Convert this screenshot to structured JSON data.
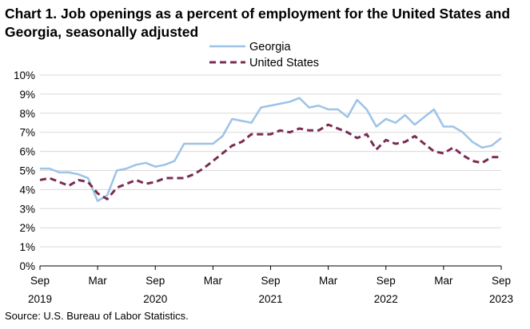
{
  "title": "Chart 1. Job openings as a percent of employment for the United States and Georgia, seasonally adjusted",
  "source": "Source: U.S. Bureau of Labor Statistics.",
  "chart_data": {
    "type": "line",
    "title": "Chart 1. Job openings as a percent of employment for the United States and Georgia, seasonally adjusted",
    "x_start": "Sep 2019",
    "x_end": "Sep 2023",
    "frequency": "monthly",
    "x_ticks": [
      {
        "month": "Sep",
        "year": "2019"
      },
      {
        "month": "Mar",
        "year": ""
      },
      {
        "month": "Sep",
        "year": "2020"
      },
      {
        "month": "Mar",
        "year": ""
      },
      {
        "month": "Sep",
        "year": "2021"
      },
      {
        "month": "Mar",
        "year": ""
      },
      {
        "month": "Sep",
        "year": "2022"
      },
      {
        "month": "Mar",
        "year": ""
      },
      {
        "month": "Sep",
        "year": "2023"
      }
    ],
    "y_ticks": [
      "0%",
      "1%",
      "2%",
      "3%",
      "4%",
      "5%",
      "6%",
      "7%",
      "8%",
      "9%",
      "10%"
    ],
    "ylim": [
      0,
      10
    ],
    "grid": "horizontal",
    "legend": "top-center",
    "series": [
      {
        "name": "Georgia",
        "color": "#9dc3e6",
        "style": "solid",
        "values": [
          5.1,
          5.1,
          4.9,
          4.9,
          4.8,
          4.6,
          3.4,
          3.7,
          5.0,
          5.1,
          5.3,
          5.4,
          5.2,
          5.3,
          5.5,
          6.4,
          6.4,
          6.4,
          6.4,
          6.8,
          7.7,
          7.6,
          7.5,
          8.3,
          8.4,
          8.5,
          8.6,
          8.8,
          8.3,
          8.4,
          8.2,
          8.2,
          7.8,
          8.7,
          8.2,
          7.3,
          7.7,
          7.5,
          7.9,
          7.4,
          7.8,
          8.2,
          7.3,
          7.3,
          7.0,
          6.5,
          6.2,
          6.3,
          6.7
        ]
      },
      {
        "name": "United States",
        "color": "#7b2c52",
        "style": "dashed",
        "values": [
          4.5,
          4.6,
          4.4,
          4.2,
          4.5,
          4.4,
          3.8,
          3.5,
          4.1,
          4.3,
          4.5,
          4.3,
          4.4,
          4.6,
          4.6,
          4.6,
          4.8,
          5.1,
          5.5,
          5.9,
          6.3,
          6.5,
          6.9,
          6.9,
          6.9,
          7.1,
          7.0,
          7.2,
          7.1,
          7.1,
          7.4,
          7.2,
          7.0,
          6.7,
          6.9,
          6.1,
          6.6,
          6.4,
          6.5,
          6.8,
          6.4,
          6.0,
          5.9,
          6.2,
          5.8,
          5.5,
          5.4,
          5.7,
          5.7
        ]
      }
    ]
  }
}
